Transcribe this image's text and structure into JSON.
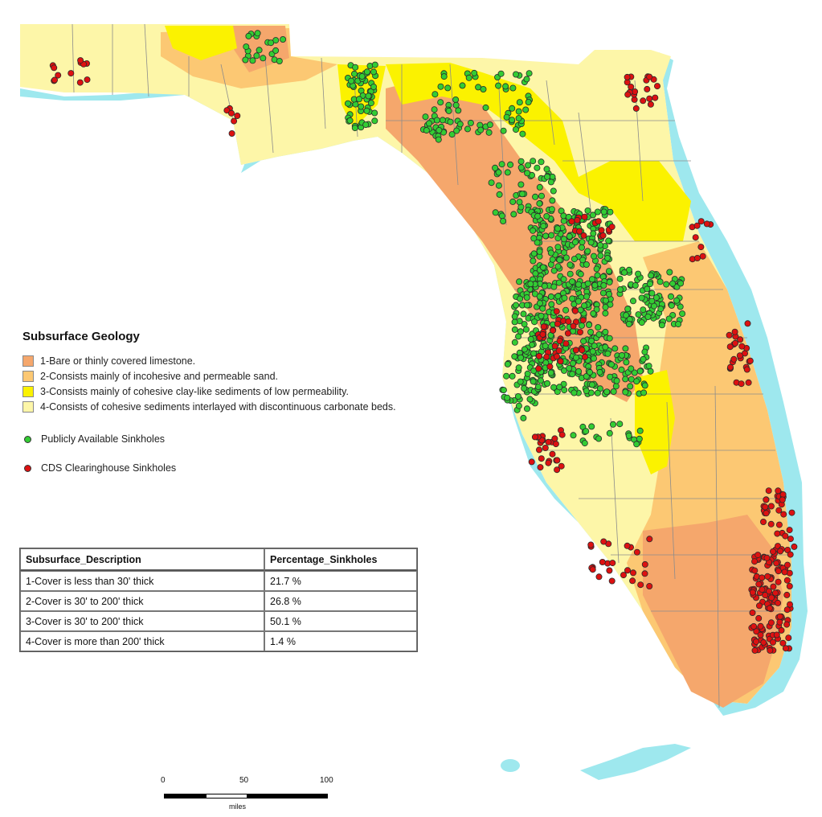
{
  "legend": {
    "title": "Subsurface Geology",
    "classes": [
      {
        "label": "1-Bare or thinly covered limestone.",
        "color": "#f5a76c"
      },
      {
        "label": "2-Consists mainly of incohesive and permeable sand.",
        "color": "#fcc873"
      },
      {
        "label": "3-Consists mainly of cohesive clay-like sediments of low permeability.",
        "color": "#fbf200"
      },
      {
        "label": "4-Consists of cohesive sediments interlayed with discontinuous carbonate beds.",
        "color": "#fdf6a8"
      }
    ],
    "markers": [
      {
        "label": "Publicly Available Sinkholes",
        "color": "#33cc33"
      },
      {
        "label": "CDS Clearinghouse Sinkholes",
        "color": "#dd1111"
      }
    ]
  },
  "table": {
    "headers": [
      "Subsurface_Description",
      "Percentage_Sinkholes"
    ],
    "rows": [
      [
        "1-Cover is less than 30' thick",
        "21.7 %"
      ],
      [
        "2-Cover is 30' to 200' thick",
        "26.8 %"
      ],
      [
        "3-Cover is 30' to 200' thick",
        "50.1 %"
      ],
      [
        "4-Cover is more than 200' thick",
        "1.4 %"
      ]
    ]
  },
  "scale": {
    "ticks": [
      "0",
      "50",
      "100"
    ],
    "unit": "miles"
  },
  "colors": {
    "water": "#9ee8ee",
    "county_lines": "#8c8c8c"
  }
}
